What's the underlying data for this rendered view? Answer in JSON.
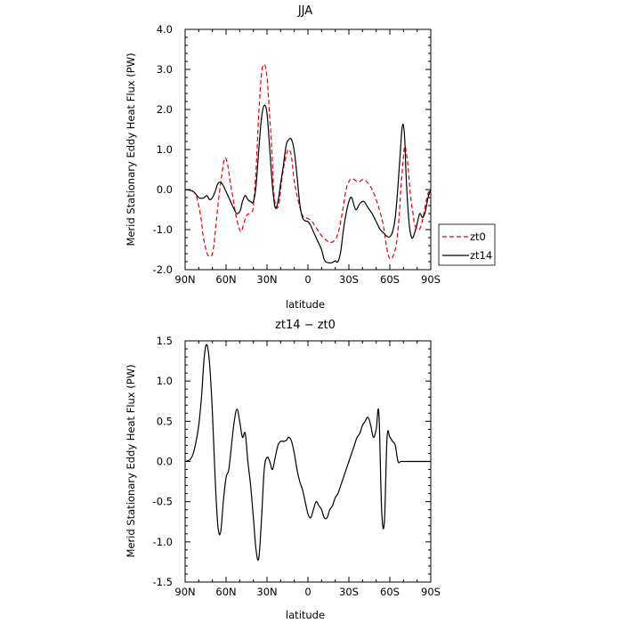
{
  "chart_data": [
    {
      "type": "line",
      "title": "JJA",
      "xlabel": "latitude",
      "ylabel": "Merid Stationary Eddy Heat Flux (PW)",
      "xlim": [
        90,
        -90
      ],
      "ylim": [
        -2.0,
        4.0
      ],
      "x_ticks": [
        {
          "value": 90,
          "label": "90N"
        },
        {
          "value": 60,
          "label": "60N"
        },
        {
          "value": 30,
          "label": "30N"
        },
        {
          "value": 0,
          "label": "0"
        },
        {
          "value": -30,
          "label": "30S"
        },
        {
          "value": -60,
          "label": "60S"
        },
        {
          "value": -90,
          "label": "90S"
        }
      ],
      "y_ticks": [
        {
          "value": -2.0,
          "label": "-2.0"
        },
        {
          "value": -1.0,
          "label": "-1.0"
        },
        {
          "value": 0.0,
          "label": "0.0"
        },
        {
          "value": 1.0,
          "label": "1.0"
        },
        {
          "value": 2.0,
          "label": "2.0"
        },
        {
          "value": 3.0,
          "label": "3.0"
        },
        {
          "value": 4.0,
          "label": "4.0"
        }
      ],
      "legend_position": "right",
      "series": [
        {
          "name": "zt0",
          "color": "#e8000b",
          "dash": true,
          "x": [
            90,
            86,
            84,
            82,
            80,
            78,
            77,
            75,
            73,
            70,
            68,
            66,
            63,
            61,
            59,
            57,
            55,
            53,
            51,
            49,
            47,
            45,
            43,
            41,
            40,
            38,
            36,
            34,
            32,
            30,
            28,
            26,
            25,
            23,
            21,
            19,
            16,
            14,
            12,
            10,
            7,
            5,
            3,
            0,
            -3,
            -6,
            -10,
            -14,
            -17,
            -20,
            -22,
            -24,
            -26,
            -28,
            -30,
            -32,
            -34,
            -36,
            -38,
            -40,
            -43,
            -47,
            -51,
            -55,
            -57,
            -59,
            -61,
            -63,
            -65,
            -67,
            -68,
            -70,
            -71,
            -73,
            -75,
            -77,
            -78,
            -80,
            -82,
            -84,
            -86,
            -88,
            -90
          ],
          "y": [
            0.0,
            -0.02,
            -0.05,
            -0.15,
            -0.4,
            -0.8,
            -1.1,
            -1.45,
            -1.65,
            -1.6,
            -1.1,
            -0.4,
            0.4,
            0.78,
            0.65,
            0.2,
            -0.2,
            -0.6,
            -0.9,
            -1.05,
            -0.85,
            -0.65,
            -0.6,
            -0.55,
            -0.4,
            0.5,
            1.9,
            2.9,
            3.12,
            2.8,
            1.8,
            0.7,
            -0.1,
            -0.45,
            -0.3,
            0.3,
            0.85,
            1.0,
            0.8,
            0.2,
            -0.3,
            -0.55,
            -0.7,
            -0.72,
            -0.8,
            -0.95,
            -1.15,
            -1.28,
            -1.32,
            -1.25,
            -1.1,
            -0.8,
            -0.4,
            0.0,
            0.2,
            0.27,
            0.25,
            0.2,
            0.2,
            0.25,
            0.2,
            0.0,
            -0.35,
            -0.85,
            -1.3,
            -1.65,
            -1.73,
            -1.6,
            -1.3,
            -0.6,
            0.0,
            0.8,
            1.08,
            0.7,
            -0.1,
            -0.6,
            -0.85,
            -0.98,
            -0.98,
            -0.75,
            -0.4,
            -0.1,
            0.0
          ]
        },
        {
          "name": "zt14",
          "color": "#000000",
          "dash": false,
          "x": [
            90,
            86,
            84,
            82,
            80,
            78,
            76,
            74,
            72,
            70,
            68,
            66,
            64,
            62,
            60,
            58,
            56,
            54,
            52,
            50,
            49,
            48,
            46,
            44,
            42,
            40,
            38,
            36,
            34,
            32,
            30,
            28,
            26,
            24,
            22,
            20,
            18,
            16,
            14,
            12,
            10,
            8,
            6,
            4,
            2,
            0,
            -2,
            -4,
            -6,
            -8,
            -10,
            -12,
            -14,
            -16,
            -18,
            -20,
            -22,
            -24,
            -26,
            -28,
            -30,
            -32,
            -35,
            -38,
            -41,
            -44,
            -47,
            -50,
            -53,
            -56,
            -58,
            -60,
            -62,
            -64,
            -66,
            -68,
            -69,
            -70,
            -71,
            -72,
            -74,
            -76,
            -78,
            -80,
            -82,
            -84,
            -86,
            -88,
            -90
          ],
          "y": [
            0.0,
            -0.02,
            -0.05,
            -0.12,
            -0.2,
            -0.22,
            -0.2,
            -0.15,
            -0.25,
            -0.2,
            -0.05,
            0.15,
            0.18,
            0.1,
            -0.05,
            -0.2,
            -0.35,
            -0.5,
            -0.6,
            -0.55,
            -0.45,
            -0.3,
            -0.15,
            -0.25,
            -0.3,
            -0.3,
            0.1,
            1.0,
            1.8,
            2.1,
            1.9,
            1.0,
            0.1,
            -0.45,
            -0.3,
            0.15,
            0.6,
            1.1,
            1.25,
            1.25,
            0.95,
            0.35,
            -0.35,
            -0.7,
            -0.78,
            -0.8,
            -0.9,
            -1.05,
            -1.2,
            -1.35,
            -1.5,
            -1.75,
            -1.82,
            -1.83,
            -1.82,
            -1.78,
            -1.8,
            -1.55,
            -1.0,
            -0.6,
            -0.3,
            -0.2,
            -0.5,
            -0.35,
            -0.3,
            -0.45,
            -0.6,
            -0.8,
            -1.0,
            -1.1,
            -1.17,
            -1.18,
            -1.05,
            -0.7,
            0.1,
            1.1,
            1.55,
            1.6,
            1.2,
            0.3,
            -0.8,
            -1.2,
            -1.1,
            -0.85,
            -0.6,
            -0.7,
            -0.55,
            -0.2,
            0.0
          ]
        }
      ]
    },
    {
      "type": "line",
      "title": "zt14 − zt0",
      "xlabel": "latitude",
      "ylabel": "Merid Stationary Eddy Heat Flux (PW)",
      "xlim": [
        90,
        -90
      ],
      "ylim": [
        -1.5,
        1.5
      ],
      "x_ticks": [
        {
          "value": 90,
          "label": "90N"
        },
        {
          "value": 60,
          "label": "60N"
        },
        {
          "value": 30,
          "label": "30N"
        },
        {
          "value": 0,
          "label": "0"
        },
        {
          "value": -30,
          "label": "30S"
        },
        {
          "value": -60,
          "label": "60S"
        },
        {
          "value": -90,
          "label": "90S"
        }
      ],
      "y_ticks": [
        {
          "value": -1.5,
          "label": "-1.5"
        },
        {
          "value": -1.0,
          "label": "-1.0"
        },
        {
          "value": -0.5,
          "label": "-0.5"
        },
        {
          "value": 0.0,
          "label": "0.0"
        },
        {
          "value": 0.5,
          "label": "0.5"
        },
        {
          "value": 1.0,
          "label": "1.0"
        },
        {
          "value": 1.5,
          "label": "1.5"
        }
      ],
      "series": [
        {
          "color": "#000000",
          "dash": false,
          "x": [
            90,
            88,
            86,
            84,
            82,
            80,
            78,
            76,
            74,
            72,
            70,
            68,
            66,
            64,
            62,
            60,
            58,
            56,
            54,
            52,
            50,
            48,
            46,
            44,
            42,
            40,
            38,
            36,
            34,
            32,
            30,
            28,
            26,
            24,
            22,
            20,
            18,
            16,
            14,
            12,
            10,
            8,
            6,
            4,
            2,
            0,
            -2,
            -4,
            -6,
            -8,
            -10,
            -12,
            -14,
            -16,
            -18,
            -20,
            -22,
            -24,
            -26,
            -28,
            -30,
            -32,
            -34,
            -36,
            -38,
            -40,
            -42,
            -44,
            -46,
            -48,
            -50,
            -52,
            -54,
            -56,
            -58,
            -60,
            -62,
            -64,
            -66,
            -68,
            -70,
            -72,
            -74,
            -76,
            -78,
            -80,
            -82,
            -84,
            -86,
            -88,
            -90
          ],
          "y": [
            0.0,
            0.01,
            0.03,
            0.1,
            0.25,
            0.45,
            0.8,
            1.3,
            1.45,
            1.2,
            0.6,
            -0.2,
            -0.8,
            -0.88,
            -0.5,
            -0.2,
            -0.1,
            0.2,
            0.5,
            0.65,
            0.5,
            0.3,
            0.35,
            0.0,
            -0.3,
            -0.7,
            -1.1,
            -1.2,
            -0.7,
            -0.1,
            0.05,
            0.0,
            -0.1,
            0.05,
            0.2,
            0.25,
            0.25,
            0.26,
            0.3,
            0.25,
            0.1,
            -0.1,
            -0.25,
            -0.35,
            -0.5,
            -0.65,
            -0.7,
            -0.6,
            -0.5,
            -0.55,
            -0.6,
            -0.7,
            -0.7,
            -0.6,
            -0.55,
            -0.45,
            -0.4,
            -0.3,
            -0.2,
            -0.1,
            0.0,
            0.1,
            0.2,
            0.3,
            0.35,
            0.45,
            0.5,
            0.55,
            0.45,
            0.3,
            0.4,
            0.6,
            -0.6,
            -0.75,
            0.3,
            0.3,
            0.25,
            0.2,
            0.0,
            0.0,
            0.0,
            0.0,
            0.0,
            0.0,
            0.0,
            0.0,
            0.0,
            0.0,
            0.0,
            0.0,
            0.0
          ]
        }
      ]
    }
  ]
}
